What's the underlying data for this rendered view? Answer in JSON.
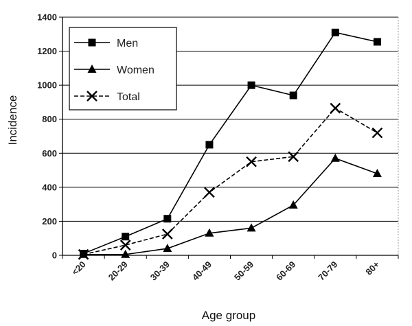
{
  "chart_data": {
    "type": "line",
    "title": "",
    "xlabel": "Age group",
    "ylabel": "Incidence",
    "categories": [
      "<20",
      "20-29",
      "30-39",
      "40-49",
      "50-59",
      "60-69",
      "70-79",
      "80+"
    ],
    "ylim": [
      0,
      1400
    ],
    "yticks": [
      0,
      200,
      400,
      600,
      800,
      1000,
      1200,
      1400
    ],
    "grid": "horizontal",
    "legend_position": "top-left",
    "series": [
      {
        "name": "Men",
        "marker": "square",
        "values": [
          10,
          110,
          215,
          650,
          1000,
          940,
          1310,
          1255
        ]
      },
      {
        "name": "Women",
        "marker": "triangle",
        "values": [
          5,
          5,
          40,
          130,
          160,
          295,
          570,
          480
        ]
      },
      {
        "name": "Total",
        "marker": "x",
        "values": [
          5,
          60,
          125,
          370,
          550,
          580,
          865,
          720
        ]
      }
    ],
    "colors": {
      "line": "#000000",
      "grid": "#000000",
      "background": "#ffffff"
    }
  }
}
